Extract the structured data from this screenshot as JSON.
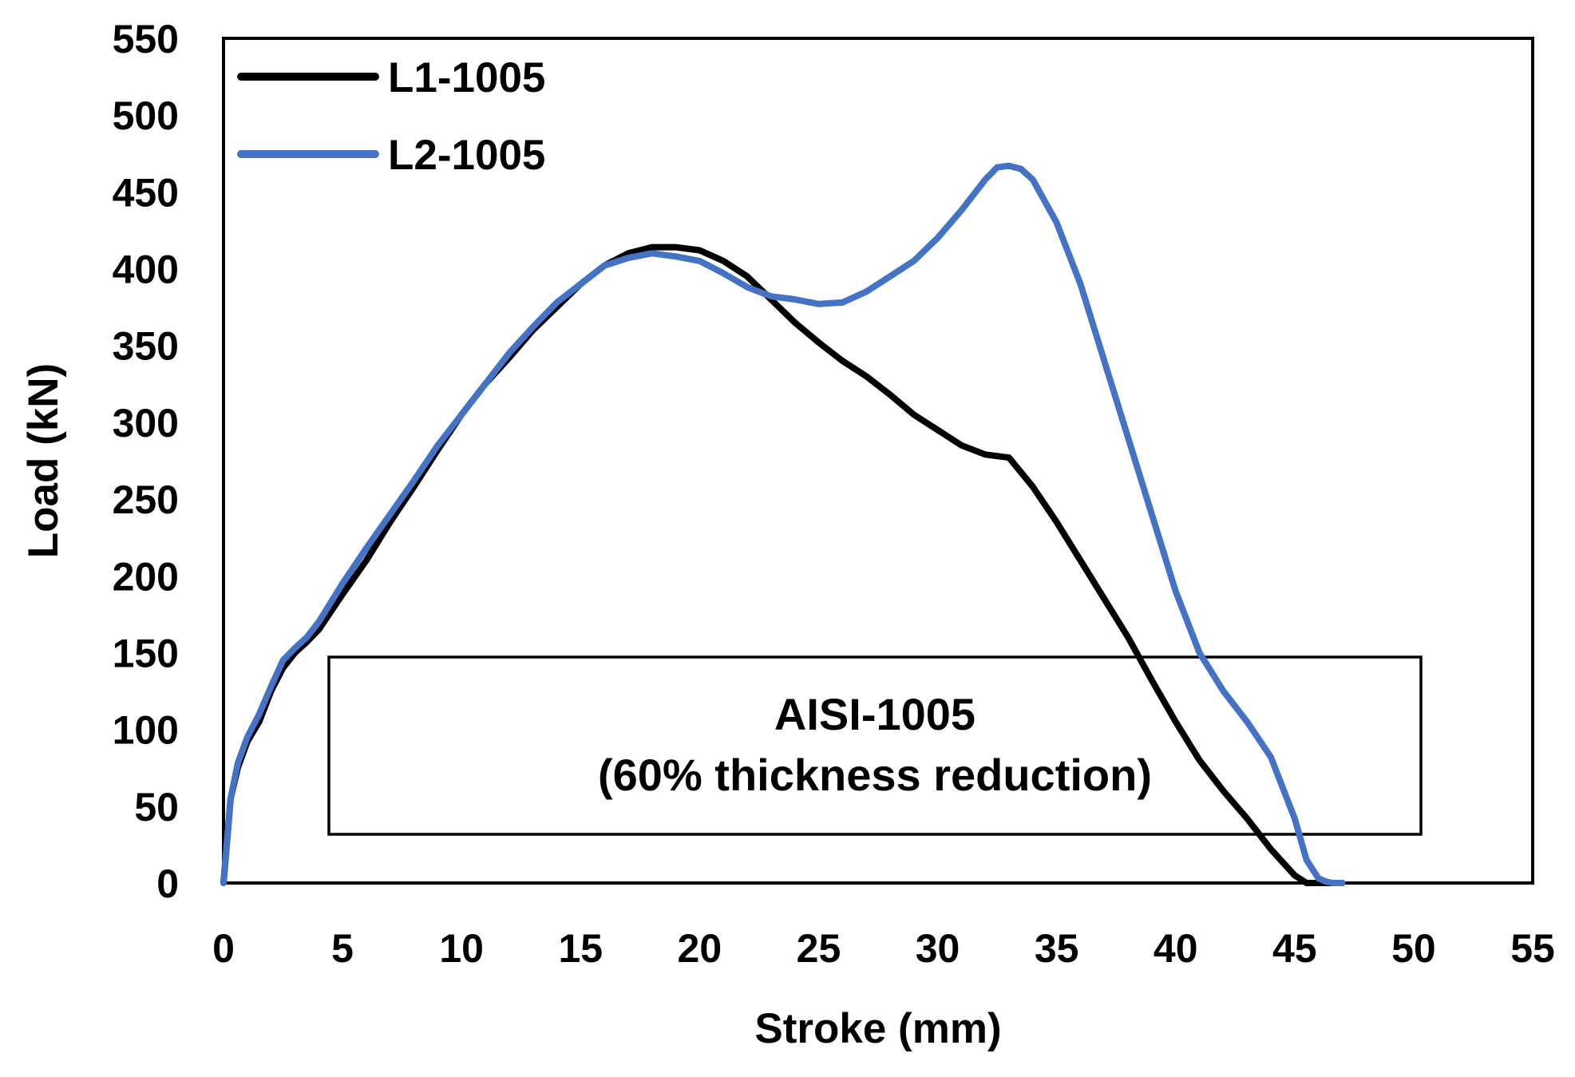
{
  "chart_data": {
    "type": "line",
    "title": "",
    "xlabel": "Stroke (mm)",
    "ylabel": "Load (kN)",
    "xlim": [
      0,
      55
    ],
    "ylim": [
      0,
      550
    ],
    "xticks": [
      0,
      5,
      10,
      15,
      20,
      25,
      30,
      35,
      40,
      45,
      50,
      55
    ],
    "yticks": [
      0,
      50,
      100,
      150,
      200,
      250,
      300,
      350,
      400,
      450,
      500,
      550
    ],
    "grid": false,
    "legend_position": "top-left",
    "annotation": {
      "lines": [
        "AISI-1005",
        "(60% thickness reduction)"
      ]
    },
    "series": [
      {
        "name": "L1-1005",
        "color": "#000000",
        "x": [
          0,
          0.3,
          0.6,
          1.0,
          1.5,
          2.0,
          2.5,
          3.0,
          3.5,
          4.0,
          5.0,
          6.0,
          7.0,
          8.0,
          9.0,
          10.0,
          11.0,
          12.0,
          13.0,
          14.0,
          15.0,
          16.0,
          17.0,
          18.0,
          19.0,
          20.0,
          21.0,
          22.0,
          23.0,
          24.0,
          25.0,
          26.0,
          27.0,
          28.0,
          29.0,
          30.0,
          31.0,
          32.0,
          33.0,
          34.0,
          35.0,
          36.0,
          37.0,
          38.0,
          39.0,
          40.0,
          41.0,
          42.0,
          43.0,
          44.0,
          45.0,
          45.5,
          46.0,
          46.5,
          47.0
        ],
        "y": [
          0,
          55,
          75,
          92,
          105,
          125,
          140,
          150,
          157,
          165,
          188,
          210,
          235,
          258,
          282,
          305,
          325,
          342,
          360,
          375,
          390,
          402,
          410,
          414,
          414,
          412,
          405,
          395,
          380,
          365,
          352,
          340,
          330,
          318,
          305,
          295,
          285,
          279,
          277,
          258,
          235,
          210,
          185,
          160,
          132,
          105,
          80,
          60,
          42,
          22,
          5,
          0,
          0,
          0,
          0
        ]
      },
      {
        "name": "L2-1005",
        "color": "#4472C4",
        "x": [
          0,
          0.3,
          0.6,
          1.0,
          1.5,
          2.0,
          2.5,
          3.0,
          3.5,
          4.0,
          5.0,
          6.0,
          7.0,
          8.0,
          9.0,
          10.0,
          11.0,
          12.0,
          13.0,
          14.0,
          15.0,
          16.0,
          17.0,
          18.0,
          19.0,
          20.0,
          21.0,
          22.0,
          23.0,
          24.0,
          25.0,
          26.0,
          27.0,
          28.0,
          29.0,
          30.0,
          31.0,
          32.0,
          32.5,
          33.0,
          33.5,
          34.0,
          35.0,
          36.0,
          37.0,
          38.0,
          39.0,
          40.0,
          41.0,
          42.0,
          43.0,
          44.0,
          45.0,
          45.5,
          46.0,
          46.3,
          46.6,
          47.0
        ],
        "y": [
          0,
          55,
          78,
          95,
          110,
          128,
          145,
          153,
          160,
          170,
          195,
          218,
          240,
          262,
          285,
          305,
          325,
          345,
          362,
          378,
          390,
          402,
          407,
          410,
          408,
          405,
          397,
          388,
          382,
          380,
          377,
          378,
          385,
          395,
          405,
          420,
          438,
          458,
          466,
          467,
          465,
          458,
          430,
          390,
          340,
          290,
          240,
          190,
          150,
          125,
          105,
          82,
          42,
          15,
          3,
          1,
          0,
          0
        ]
      }
    ]
  }
}
